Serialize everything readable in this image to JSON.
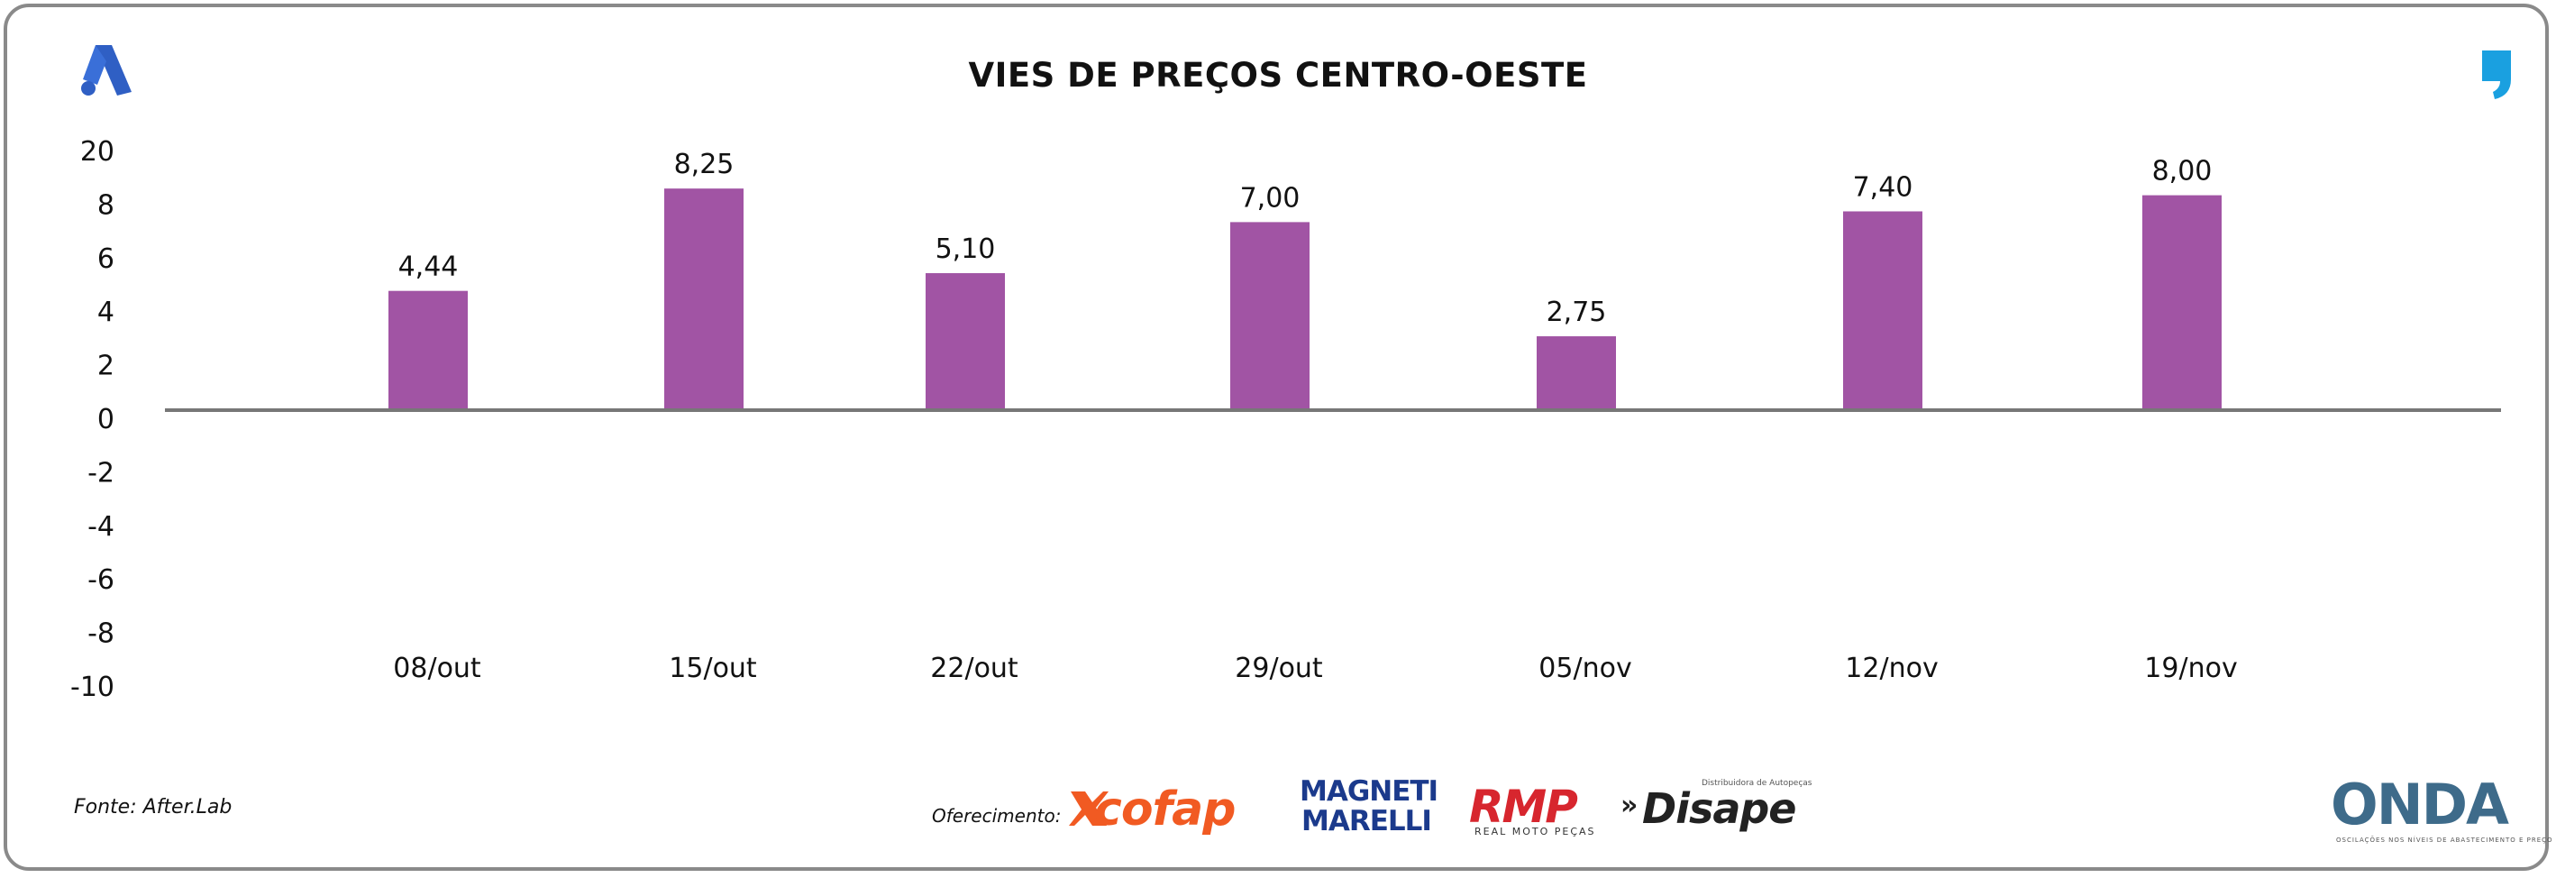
{
  "chart_data": {
    "type": "bar",
    "title": "VIES DE PREÇOS CENTRO-OESTE",
    "categories": [
      "08/out",
      "15/out",
      "22/out",
      "29/out",
      "05/nov",
      "12/nov",
      "19/nov"
    ],
    "values": [
      4.44,
      8.25,
      5.1,
      7.0,
      2.75,
      7.4,
      8.0
    ],
    "value_labels": [
      "4,44",
      "8,25",
      "5,10",
      "7,00",
      "2,75",
      "7,40",
      "8,00"
    ],
    "y_ticks": [
      "20",
      "8",
      "6",
      "4",
      "2",
      "0",
      "-2",
      "-4",
      "-6",
      "-8",
      "-10"
    ],
    "ylim": [
      -10,
      20
    ],
    "grid": false,
    "bar_color": "#a154a4",
    "axis_color": "#777777"
  },
  "footer": {
    "source": "Fonte: After.Lab",
    "sponsor_label": "Oferecimento:",
    "sponsors": {
      "cofap": "cofap",
      "magneti_line1": "MAGNETI",
      "magneti_line2": "MARELLI",
      "rmp": "RMP",
      "rmp_sub": "REAL MOTO PEÇAS",
      "disape": "Disape",
      "disape_sub": "Distribuidora de Autopeças"
    },
    "brand": "ONDA",
    "brand_sub": "OSCILAÇÕES NOS NÍVEIS DE ABASTECIMENTO E PREÇO"
  },
  "colors": {
    "logo_blue": "#2f5fc4",
    "quote_blue": "#1aa0e0"
  },
  "icons": {
    "top_left": "a-brand-logo-icon",
    "top_right": "quote-mark-icon"
  }
}
